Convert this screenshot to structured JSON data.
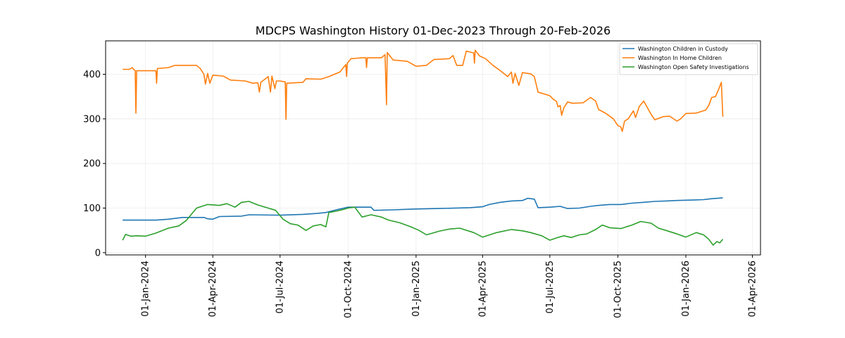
{
  "chart_data": {
    "type": "line",
    "title": "MDCPS Washington History 01-Dec-2023 Through 20-Feb-2026",
    "xlabel": "",
    "ylabel": "",
    "x_type": "date",
    "x_range": [
      "2023-11-08",
      "2026-04-12"
    ],
    "ylim": [
      -5,
      475
    ],
    "y_ticks": [
      0,
      100,
      200,
      300,
      400
    ],
    "x_ticks": [
      {
        "date": "2024-01-01",
        "label": "01-Jan-2024"
      },
      {
        "date": "2024-04-01",
        "label": "01-Apr-2024"
      },
      {
        "date": "2024-07-01",
        "label": "01-Jul-2024"
      },
      {
        "date": "2024-10-01",
        "label": "01-Oct-2024"
      },
      {
        "date": "2025-01-01",
        "label": "01-Jan-2025"
      },
      {
        "date": "2025-04-01",
        "label": "01-Apr-2025"
      },
      {
        "date": "2025-07-01",
        "label": "01-Jul-2025"
      },
      {
        "date": "2025-10-01",
        "label": "01-Oct-2025"
      },
      {
        "date": "2026-01-01",
        "label": "01-Jan-2026"
      },
      {
        "date": "2026-04-01",
        "label": "01-Apr-2026"
      }
    ],
    "grid": true,
    "legend_position": "top-right",
    "series": [
      {
        "name": "Washington Children in Custody",
        "color": "#1f77b4",
        "points": [
          [
            "2023-12-01",
            73
          ],
          [
            "2024-01-15",
            73
          ],
          [
            "2024-02-01",
            75
          ],
          [
            "2024-02-20",
            79
          ],
          [
            "2024-03-20",
            79
          ],
          [
            "2024-03-25",
            76
          ],
          [
            "2024-04-01",
            75
          ],
          [
            "2024-04-10",
            81
          ],
          [
            "2024-05-10",
            82
          ],
          [
            "2024-05-20",
            85
          ],
          [
            "2024-07-01",
            84
          ],
          [
            "2024-08-01",
            86
          ],
          [
            "2024-08-20",
            88
          ],
          [
            "2024-09-01",
            90
          ],
          [
            "2024-09-15",
            96
          ],
          [
            "2024-10-01",
            102
          ],
          [
            "2024-11-01",
            102
          ],
          [
            "2024-11-05",
            95
          ],
          [
            "2024-12-01",
            96
          ],
          [
            "2025-01-01",
            98
          ],
          [
            "2025-02-01",
            99
          ],
          [
            "2025-03-15",
            101
          ],
          [
            "2025-04-01",
            103
          ],
          [
            "2025-04-10",
            108
          ],
          [
            "2025-04-25",
            113
          ],
          [
            "2025-05-10",
            116
          ],
          [
            "2025-05-25",
            117
          ],
          [
            "2025-06-01",
            122
          ],
          [
            "2025-06-10",
            120
          ],
          [
            "2025-06-15",
            101
          ],
          [
            "2025-07-01",
            102
          ],
          [
            "2025-07-15",
            104
          ],
          [
            "2025-07-25",
            99
          ],
          [
            "2025-08-10",
            100
          ],
          [
            "2025-08-25",
            104
          ],
          [
            "2025-09-05",
            106
          ],
          [
            "2025-09-20",
            108
          ],
          [
            "2025-10-05",
            108
          ],
          [
            "2025-10-20",
            111
          ],
          [
            "2025-11-05",
            113
          ],
          [
            "2025-11-20",
            115
          ],
          [
            "2025-12-05",
            116
          ],
          [
            "2025-12-20",
            117
          ],
          [
            "2026-01-10",
            118
          ],
          [
            "2026-01-25",
            119
          ],
          [
            "2026-02-05",
            121
          ],
          [
            "2026-02-20",
            123
          ]
        ]
      },
      {
        "name": "Washington In Home Children",
        "color": "#ff7f0e",
        "points": [
          [
            "2023-12-01",
            411
          ],
          [
            "2023-12-10",
            411
          ],
          [
            "2023-12-14",
            415
          ],
          [
            "2023-12-16",
            411
          ],
          [
            "2023-12-18",
            408
          ],
          [
            "2023-12-19",
            313
          ],
          [
            "2023-12-20",
            408
          ],
          [
            "2024-01-15",
            408
          ],
          [
            "2024-01-16",
            380
          ],
          [
            "2024-01-17",
            413
          ],
          [
            "2024-02-01",
            415
          ],
          [
            "2024-02-10",
            420
          ],
          [
            "2024-03-10",
            420
          ],
          [
            "2024-03-15",
            413
          ],
          [
            "2024-03-20",
            400
          ],
          [
            "2024-03-22",
            378
          ],
          [
            "2024-03-25",
            402
          ],
          [
            "2024-03-28",
            380
          ],
          [
            "2024-04-01",
            398
          ],
          [
            "2024-04-15",
            396
          ],
          [
            "2024-04-25",
            387
          ],
          [
            "2024-05-15",
            385
          ],
          [
            "2024-05-25",
            380
          ],
          [
            "2024-06-01",
            381
          ],
          [
            "2024-06-03",
            360
          ],
          [
            "2024-06-05",
            382
          ],
          [
            "2024-06-15",
            395
          ],
          [
            "2024-06-18",
            360
          ],
          [
            "2024-06-20",
            396
          ],
          [
            "2024-06-24",
            368
          ],
          [
            "2024-06-26",
            385
          ],
          [
            "2024-07-01",
            385
          ],
          [
            "2024-07-08",
            383
          ],
          [
            "2024-07-09",
            299
          ],
          [
            "2024-07-10",
            380
          ],
          [
            "2024-08-01",
            382
          ],
          [
            "2024-08-05",
            390
          ],
          [
            "2024-08-25",
            389
          ],
          [
            "2024-09-05",
            395
          ],
          [
            "2024-09-20",
            405
          ],
          [
            "2024-09-28",
            422
          ],
          [
            "2024-09-29",
            395
          ],
          [
            "2024-09-30",
            425
          ],
          [
            "2024-10-05",
            435
          ],
          [
            "2024-10-20",
            437
          ],
          [
            "2024-10-25",
            437
          ],
          [
            "2024-10-26",
            415
          ],
          [
            "2024-10-27",
            437
          ],
          [
            "2024-11-15",
            437
          ],
          [
            "2024-11-20",
            444
          ],
          [
            "2024-11-22",
            332
          ],
          [
            "2024-11-23",
            449
          ],
          [
            "2024-12-01",
            432
          ],
          [
            "2024-12-20",
            429
          ],
          [
            "2025-01-01",
            418
          ],
          [
            "2025-01-15",
            420
          ],
          [
            "2025-01-25",
            433
          ],
          [
            "2025-02-15",
            435
          ],
          [
            "2025-02-20",
            442
          ],
          [
            "2025-02-25",
            420
          ],
          [
            "2025-03-05",
            420
          ],
          [
            "2025-03-10",
            452
          ],
          [
            "2025-03-20",
            448
          ],
          [
            "2025-03-21",
            425
          ],
          [
            "2025-03-22",
            454
          ],
          [
            "2025-03-28",
            441
          ],
          [
            "2025-04-05",
            435
          ],
          [
            "2025-04-15",
            420
          ],
          [
            "2025-04-25",
            408
          ],
          [
            "2025-05-05",
            395
          ],
          [
            "2025-05-10",
            405
          ],
          [
            "2025-05-12",
            380
          ],
          [
            "2025-05-15",
            402
          ],
          [
            "2025-05-20",
            375
          ],
          [
            "2025-05-25",
            404
          ],
          [
            "2025-06-05",
            401
          ],
          [
            "2025-06-10",
            395
          ],
          [
            "2025-06-15",
            360
          ],
          [
            "2025-07-01",
            352
          ],
          [
            "2025-07-05",
            345
          ],
          [
            "2025-07-10",
            339
          ],
          [
            "2025-07-12",
            327
          ],
          [
            "2025-07-15",
            330
          ],
          [
            "2025-07-17",
            308
          ],
          [
            "2025-07-20",
            325
          ],
          [
            "2025-07-25",
            338
          ],
          [
            "2025-08-01",
            335
          ],
          [
            "2025-08-15",
            336
          ],
          [
            "2025-08-25",
            348
          ],
          [
            "2025-09-01",
            340
          ],
          [
            "2025-09-05",
            321
          ],
          [
            "2025-09-15",
            312
          ],
          [
            "2025-09-25",
            300
          ],
          [
            "2025-10-01",
            285
          ],
          [
            "2025-10-05",
            282
          ],
          [
            "2025-10-07",
            272
          ],
          [
            "2025-10-10",
            295
          ],
          [
            "2025-10-15",
            300
          ],
          [
            "2025-10-22",
            318
          ],
          [
            "2025-10-25",
            303
          ],
          [
            "2025-10-30",
            328
          ],
          [
            "2025-11-05",
            340
          ],
          [
            "2025-11-10",
            325
          ],
          [
            "2025-11-15",
            310
          ],
          [
            "2025-11-20",
            298
          ],
          [
            "2025-12-01",
            305
          ],
          [
            "2025-12-10",
            306
          ],
          [
            "2025-12-20",
            295
          ],
          [
            "2025-12-25",
            300
          ],
          [
            "2026-01-01",
            312
          ],
          [
            "2026-01-15",
            313
          ],
          [
            "2026-01-28",
            320
          ],
          [
            "2026-02-01",
            330
          ],
          [
            "2026-02-05",
            348
          ],
          [
            "2026-02-10",
            350
          ],
          [
            "2026-02-14",
            365
          ],
          [
            "2026-02-18",
            382
          ],
          [
            "2026-02-20",
            305
          ]
        ]
      },
      {
        "name": "Washington Open Safety Investigations",
        "color": "#2ca02c",
        "points": [
          [
            "2023-12-01",
            28
          ],
          [
            "2023-12-05",
            41
          ],
          [
            "2023-12-12",
            37
          ],
          [
            "2023-12-20",
            38
          ],
          [
            "2024-01-01",
            37
          ],
          [
            "2024-01-15",
            44
          ],
          [
            "2024-02-01",
            55
          ],
          [
            "2024-02-15",
            60
          ],
          [
            "2024-02-25",
            72
          ],
          [
            "2024-03-10",
            100
          ],
          [
            "2024-03-25",
            108
          ],
          [
            "2024-04-10",
            106
          ],
          [
            "2024-04-20",
            110
          ],
          [
            "2024-05-01",
            102
          ],
          [
            "2024-05-10",
            113
          ],
          [
            "2024-05-20",
            115
          ],
          [
            "2024-06-01",
            107
          ],
          [
            "2024-06-15",
            100
          ],
          [
            "2024-06-25",
            95
          ],
          [
            "2024-07-05",
            75
          ],
          [
            "2024-07-15",
            65
          ],
          [
            "2024-07-25",
            62
          ],
          [
            "2024-08-05",
            50
          ],
          [
            "2024-08-15",
            60
          ],
          [
            "2024-08-25",
            63
          ],
          [
            "2024-09-01",
            58
          ],
          [
            "2024-09-05",
            90
          ],
          [
            "2024-09-15",
            93
          ],
          [
            "2024-09-25",
            97
          ],
          [
            "2024-10-01",
            100
          ],
          [
            "2024-10-10",
            102
          ],
          [
            "2024-10-20",
            80
          ],
          [
            "2024-11-01",
            85
          ],
          [
            "2024-11-15",
            80
          ],
          [
            "2024-11-25",
            73
          ],
          [
            "2024-12-10",
            67
          ],
          [
            "2024-12-25",
            58
          ],
          [
            "2025-01-05",
            50
          ],
          [
            "2025-01-15",
            40
          ],
          [
            "2025-02-01",
            48
          ],
          [
            "2025-02-15",
            53
          ],
          [
            "2025-03-01",
            55
          ],
          [
            "2025-03-20",
            45
          ],
          [
            "2025-04-01",
            35
          ],
          [
            "2025-04-20",
            45
          ],
          [
            "2025-05-10",
            52
          ],
          [
            "2025-05-25",
            49
          ],
          [
            "2025-06-05",
            45
          ],
          [
            "2025-06-20",
            38
          ],
          [
            "2025-07-01",
            28
          ],
          [
            "2025-07-10",
            33
          ],
          [
            "2025-07-20",
            38
          ],
          [
            "2025-07-30",
            34
          ],
          [
            "2025-08-10",
            40
          ],
          [
            "2025-08-20",
            42
          ],
          [
            "2025-09-01",
            52
          ],
          [
            "2025-09-10",
            62
          ],
          [
            "2025-09-20",
            56
          ],
          [
            "2025-10-05",
            54
          ],
          [
            "2025-10-20",
            62
          ],
          [
            "2025-11-01",
            70
          ],
          [
            "2025-11-15",
            66
          ],
          [
            "2025-11-25",
            55
          ],
          [
            "2025-12-05",
            50
          ],
          [
            "2025-12-20",
            42
          ],
          [
            "2026-01-01",
            35
          ],
          [
            "2026-01-15",
            45
          ],
          [
            "2026-01-25",
            40
          ],
          [
            "2026-02-01",
            30
          ],
          [
            "2026-02-07",
            17
          ],
          [
            "2026-02-12",
            25
          ],
          [
            "2026-02-16",
            22
          ],
          [
            "2026-02-20",
            30
          ]
        ]
      }
    ]
  }
}
